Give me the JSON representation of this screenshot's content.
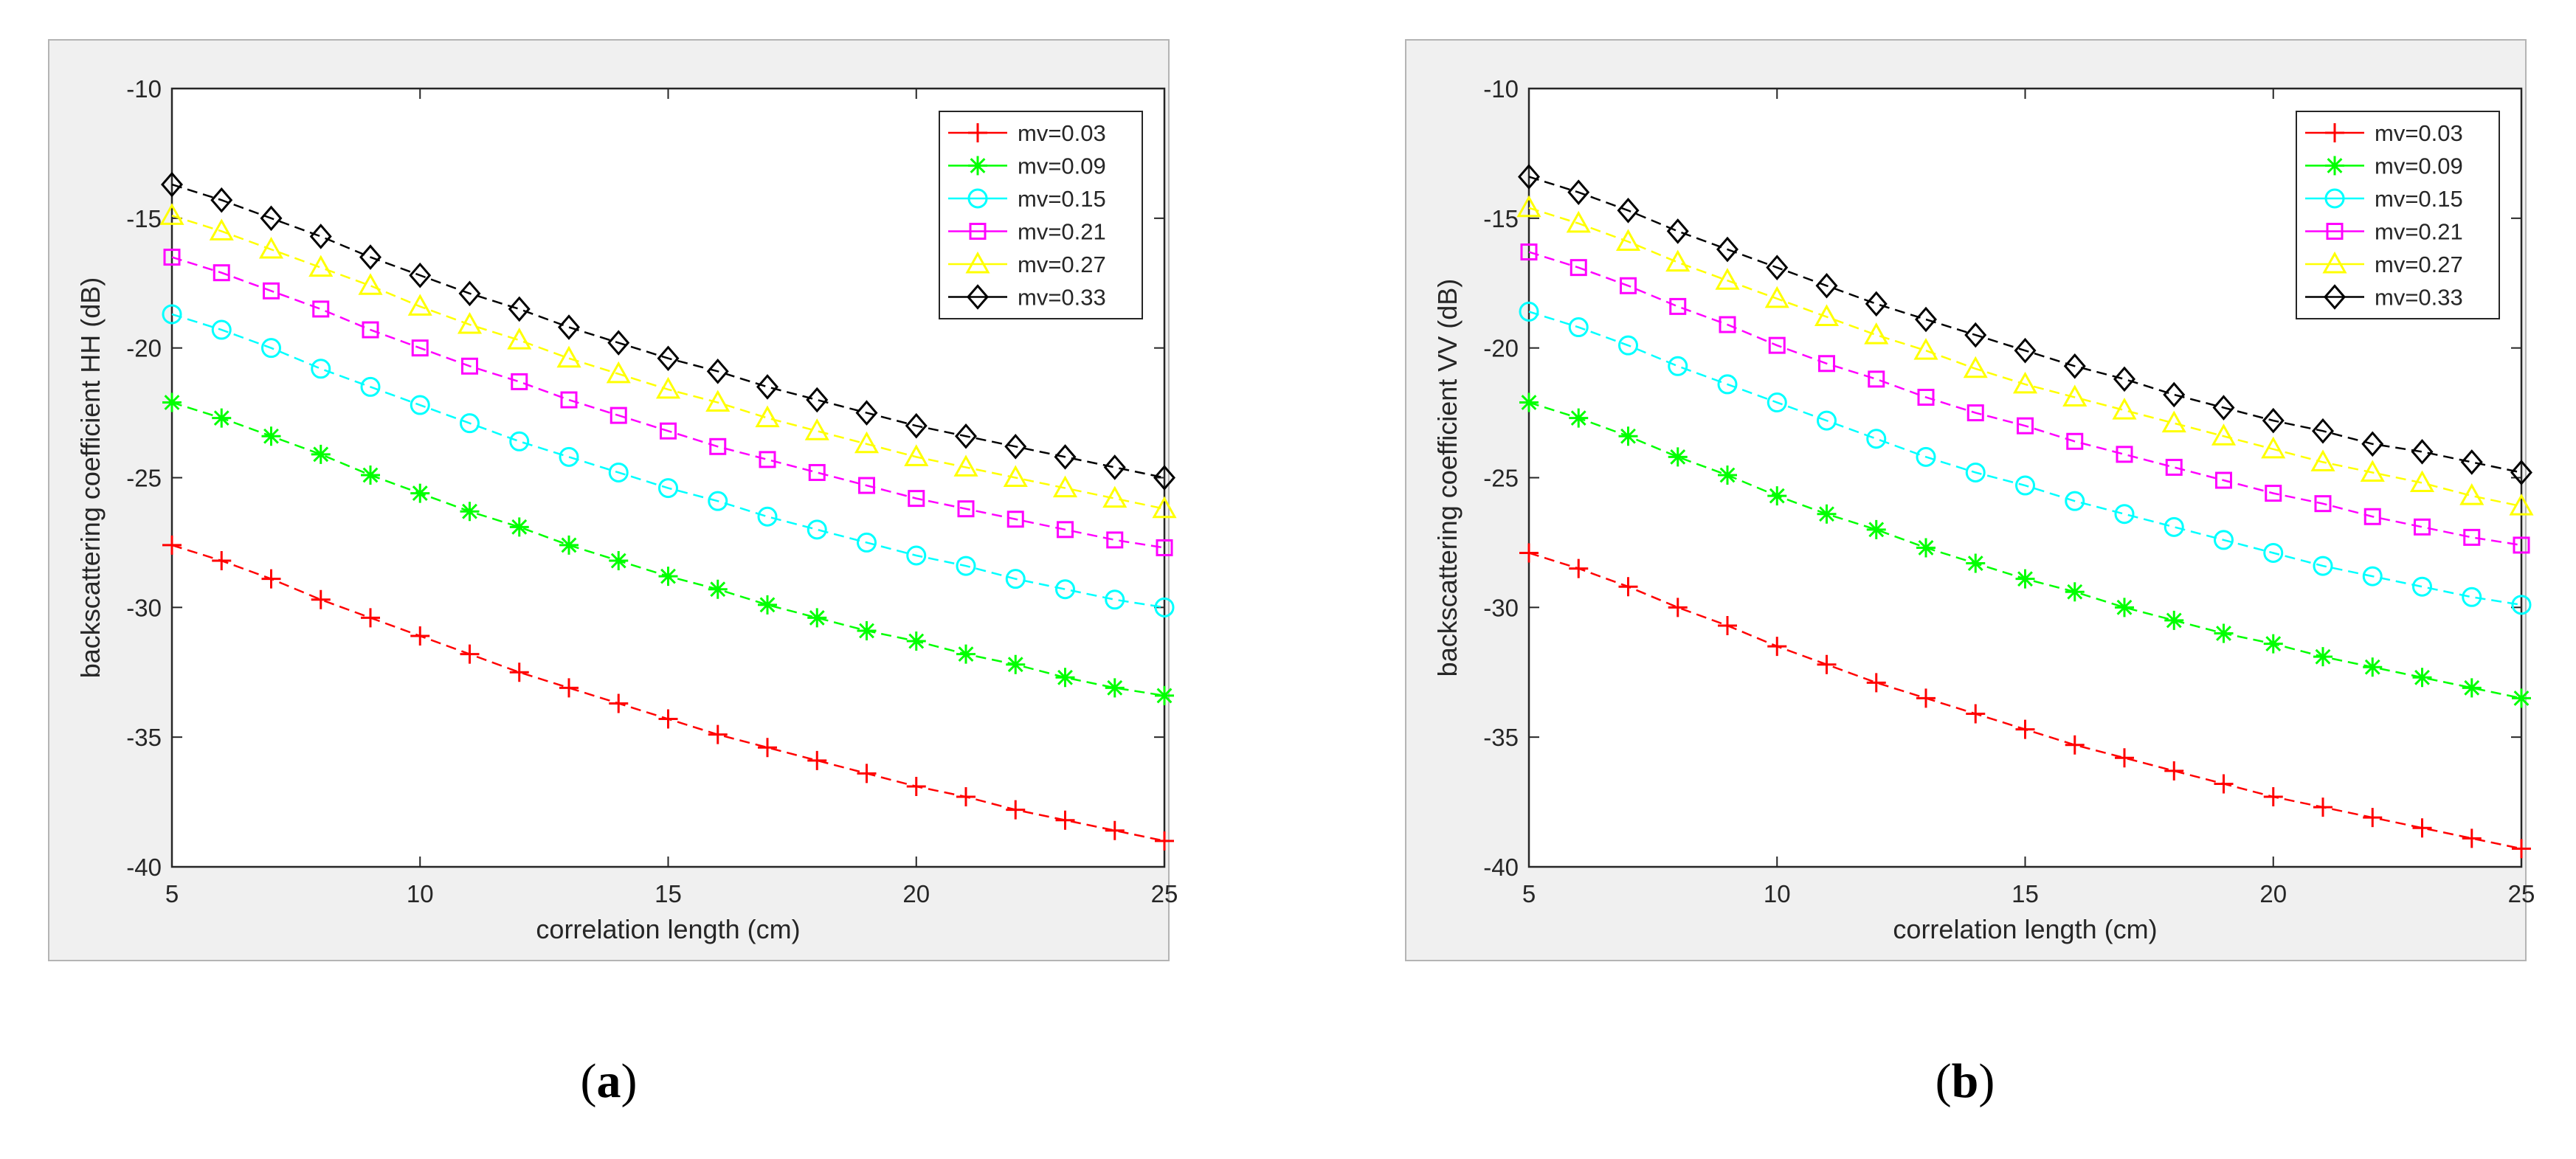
{
  "panels": [
    {
      "caption": {
        "open": "(",
        "letter": "a",
        "close": ")"
      },
      "chart_data": {
        "type": "line",
        "title": "",
        "xlabel": "correlation length (cm)",
        "ylabel": "backscattering coefficient HH (dB)",
        "xlim": [
          5,
          25
        ],
        "ylim": [
          -40,
          -10
        ],
        "xticks": [
          5,
          10,
          15,
          20,
          25
        ],
        "yticks": [
          -10,
          -15,
          -20,
          -25,
          -30,
          -35,
          -40
        ],
        "legend_position": "top-right",
        "grid": false,
        "x": [
          5,
          6,
          7,
          8,
          9,
          10,
          11,
          12,
          13,
          14,
          15,
          16,
          17,
          18,
          19,
          20,
          21,
          22,
          23,
          24,
          25
        ],
        "series": [
          {
            "name": "mv=0.03",
            "color": "#ff0000",
            "marker": "plus",
            "values": [
              -27.6,
              -28.2,
              -28.9,
              -29.7,
              -30.4,
              -31.1,
              -31.8,
              -32.5,
              -33.1,
              -33.7,
              -34.3,
              -34.9,
              -35.4,
              -35.9,
              -36.4,
              -36.9,
              -37.3,
              -37.8,
              -38.2,
              -38.6,
              -39.0
            ]
          },
          {
            "name": "mv=0.09",
            "color": "#00ff00",
            "marker": "asterisk",
            "values": [
              -22.1,
              -22.7,
              -23.4,
              -24.1,
              -24.9,
              -25.6,
              -26.3,
              -26.9,
              -27.6,
              -28.2,
              -28.8,
              -29.3,
              -29.9,
              -30.4,
              -30.9,
              -31.3,
              -31.8,
              -32.2,
              -32.7,
              -33.1,
              -33.4
            ]
          },
          {
            "name": "mv=0.15",
            "color": "#00ffff",
            "marker": "circle",
            "values": [
              -18.7,
              -19.3,
              -20.0,
              -20.8,
              -21.5,
              -22.2,
              -22.9,
              -23.6,
              -24.2,
              -24.8,
              -25.4,
              -25.9,
              -26.5,
              -27.0,
              -27.5,
              -28.0,
              -28.4,
              -28.9,
              -29.3,
              -29.7,
              -30.0
            ]
          },
          {
            "name": "mv=0.21",
            "color": "#ff00ff",
            "marker": "square",
            "values": [
              -16.5,
              -17.1,
              -17.8,
              -18.5,
              -19.3,
              -20.0,
              -20.7,
              -21.3,
              -22.0,
              -22.6,
              -23.2,
              -23.8,
              -24.3,
              -24.8,
              -25.3,
              -25.8,
              -26.2,
              -26.6,
              -27.0,
              -27.4,
              -27.7
            ]
          },
          {
            "name": "mv=0.27",
            "color": "#ffff00",
            "marker": "triangle",
            "values": [
              -14.9,
              -15.5,
              -16.2,
              -16.9,
              -17.6,
              -18.4,
              -19.1,
              -19.7,
              -20.4,
              -21.0,
              -21.6,
              -22.1,
              -22.7,
              -23.2,
              -23.7,
              -24.2,
              -24.6,
              -25.0,
              -25.4,
              -25.8,
              -26.2
            ]
          },
          {
            "name": "mv=0.33",
            "color": "#000000",
            "marker": "diamond",
            "values": [
              -13.7,
              -14.3,
              -15.0,
              -15.7,
              -16.5,
              -17.2,
              -17.9,
              -18.5,
              -19.2,
              -19.8,
              -20.4,
              -20.9,
              -21.5,
              -22.0,
              -22.5,
              -23.0,
              -23.4,
              -23.8,
              -24.2,
              -24.6,
              -25.0
            ]
          }
        ]
      }
    },
    {
      "caption": {
        "open": "(",
        "letter": "b",
        "close": ")"
      },
      "chart_data": {
        "type": "line",
        "title": "",
        "xlabel": "correlation length (cm)",
        "ylabel": "backscattering coefficient VV (dB)",
        "xlim": [
          5,
          25
        ],
        "ylim": [
          -40,
          -10
        ],
        "xticks": [
          5,
          10,
          15,
          20,
          25
        ],
        "yticks": [
          -10,
          -15,
          -20,
          -25,
          -30,
          -35,
          -40
        ],
        "legend_position": "top-right",
        "grid": false,
        "x": [
          5,
          6,
          7,
          8,
          9,
          10,
          11,
          12,
          13,
          14,
          15,
          16,
          17,
          18,
          19,
          20,
          21,
          22,
          23,
          24,
          25
        ],
        "series": [
          {
            "name": "mv=0.03",
            "color": "#ff0000",
            "marker": "plus",
            "values": [
              -27.9,
              -28.5,
              -29.2,
              -30.0,
              -30.7,
              -31.5,
              -32.2,
              -32.9,
              -33.5,
              -34.1,
              -34.7,
              -35.3,
              -35.8,
              -36.3,
              -36.8,
              -37.3,
              -37.7,
              -38.1,
              -38.5,
              -38.9,
              -39.3
            ]
          },
          {
            "name": "mv=0.09",
            "color": "#00ff00",
            "marker": "asterisk",
            "values": [
              -22.1,
              -22.7,
              -23.4,
              -24.2,
              -24.9,
              -25.7,
              -26.4,
              -27.0,
              -27.7,
              -28.3,
              -28.9,
              -29.4,
              -30.0,
              -30.5,
              -31.0,
              -31.4,
              -31.9,
              -32.3,
              -32.7,
              -33.1,
              -33.5
            ]
          },
          {
            "name": "mv=0.15",
            "color": "#00ffff",
            "marker": "circle",
            "values": [
              -18.6,
              -19.2,
              -19.9,
              -20.7,
              -21.4,
              -22.1,
              -22.8,
              -23.5,
              -24.2,
              -24.8,
              -25.3,
              -25.9,
              -26.4,
              -26.9,
              -27.4,
              -27.9,
              -28.4,
              -28.8,
              -29.2,
              -29.6,
              -29.9
            ]
          },
          {
            "name": "mv=0.21",
            "color": "#ff00ff",
            "marker": "square",
            "values": [
              -16.3,
              -16.9,
              -17.6,
              -18.4,
              -19.1,
              -19.9,
              -20.6,
              -21.2,
              -21.9,
              -22.5,
              -23.0,
              -23.6,
              -24.1,
              -24.6,
              -25.1,
              -25.6,
              -26.0,
              -26.5,
              -26.9,
              -27.3,
              -27.6
            ]
          },
          {
            "name": "mv=0.27",
            "color": "#ffff00",
            "marker": "triangle",
            "values": [
              -14.6,
              -15.2,
              -15.9,
              -16.7,
              -17.4,
              -18.1,
              -18.8,
              -19.5,
              -20.1,
              -20.8,
              -21.4,
              -21.9,
              -22.4,
              -22.9,
              -23.4,
              -23.9,
              -24.4,
              -24.8,
              -25.2,
              -25.7,
              -26.1
            ]
          },
          {
            "name": "mv=0.33",
            "color": "#000000",
            "marker": "diamond",
            "values": [
              -13.4,
              -14.0,
              -14.7,
              -15.5,
              -16.2,
              -16.9,
              -17.6,
              -18.3,
              -18.9,
              -19.5,
              -20.1,
              -20.7,
              -21.2,
              -21.8,
              -22.3,
              -22.8,
              -23.2,
              -23.7,
              -24.0,
              -24.4,
              -24.8
            ]
          }
        ]
      }
    }
  ]
}
